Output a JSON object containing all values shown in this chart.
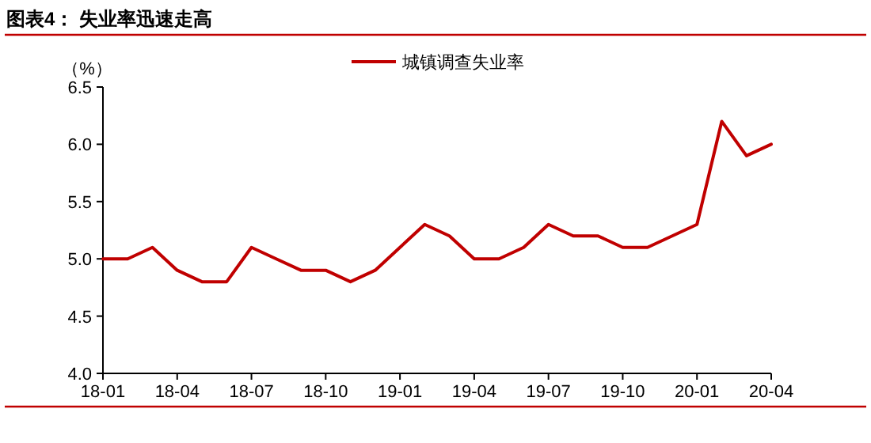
{
  "chart_data": {
    "type": "line",
    "title": "图表4：  失业率迅速走高",
    "ylabel": "（%）",
    "categories": [
      "18-01",
      null,
      null,
      "18-04",
      null,
      null,
      "18-07",
      null,
      null,
      "18-10",
      null,
      null,
      "19-01",
      null,
      null,
      "19-04",
      null,
      null,
      "19-07",
      null,
      null,
      "19-10",
      null,
      null,
      "20-01",
      null,
      null,
      "20-04"
    ],
    "series": [
      {
        "name": "城镇调查失业率",
        "color": "#c00000",
        "values": [
          5.0,
          5.0,
          5.1,
          4.9,
          4.8,
          4.8,
          5.1,
          5.0,
          4.9,
          4.9,
          4.8,
          4.9,
          5.1,
          5.3,
          5.2,
          5.0,
          5.0,
          5.1,
          5.3,
          5.2,
          5.2,
          5.1,
          5.1,
          5.2,
          5.3,
          6.2,
          5.9,
          6.0
        ]
      }
    ],
    "ylim": [
      4.0,
      6.5
    ],
    "yticks": [
      {
        "value": 4.0,
        "label": "4.0"
      },
      {
        "value": 4.5,
        "label": "4.5"
      },
      {
        "value": 5.0,
        "label": "5.0"
      },
      {
        "value": 5.5,
        "label": "5.5"
      },
      {
        "value": 6.0,
        "label": "6.0"
      },
      {
        "value": 6.5,
        "label": "6.5"
      }
    ],
    "legend": "top",
    "grid": false,
    "marker": "none",
    "line_style": "solid"
  }
}
